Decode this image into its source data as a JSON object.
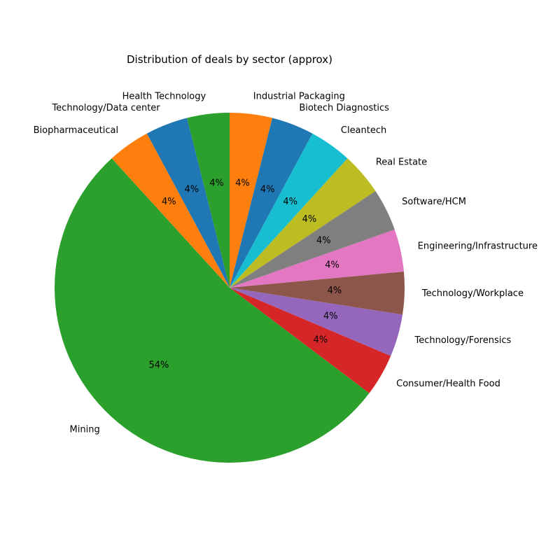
{
  "chart_data": {
    "type": "pie",
    "title": "Distribution of deals by sector (approx)",
    "start_angle_deg": 90,
    "direction": "counterclockwise",
    "slices": [
      {
        "label": "Health Technology",
        "value": 4,
        "pct_label": "4%",
        "color": "#2ca02c"
      },
      {
        "label": "Technology/Data center",
        "value": 4,
        "pct_label": "4%",
        "color": "#1f77b4"
      },
      {
        "label": "Biopharmaceutical",
        "value": 4,
        "pct_label": "4%",
        "color": "#ff7f0e"
      },
      {
        "label": "Mining",
        "value": 54,
        "pct_label": "54%",
        "color": "#2ca02c"
      },
      {
        "label": "Consumer/Health Food",
        "value": 4,
        "pct_label": "4%",
        "color": "#d62728"
      },
      {
        "label": "Technology/Forensics",
        "value": 4,
        "pct_label": "4%",
        "color": "#9467bd"
      },
      {
        "label": "Technology/Workplace",
        "value": 4,
        "pct_label": "4%",
        "color": "#8c564b"
      },
      {
        "label": "Engineering/Infrastructure",
        "value": 4,
        "pct_label": "4%",
        "color": "#e377c2"
      },
      {
        "label": "Software/HCM",
        "value": 4,
        "pct_label": "4%",
        "color": "#7f7f7f"
      },
      {
        "label": "Real Estate",
        "value": 4,
        "pct_label": "4%",
        "color": "#bcbd22"
      },
      {
        "label": "Cleantech",
        "value": 4,
        "pct_label": "4%",
        "color": "#17becf"
      },
      {
        "label": "Biotech Diagnostics",
        "value": 4,
        "pct_label": "4%",
        "color": "#1f77b4"
      },
      {
        "label": "Industrial Packaging",
        "value": 4,
        "pct_label": "4%",
        "color": "#ff7f0e"
      }
    ]
  }
}
